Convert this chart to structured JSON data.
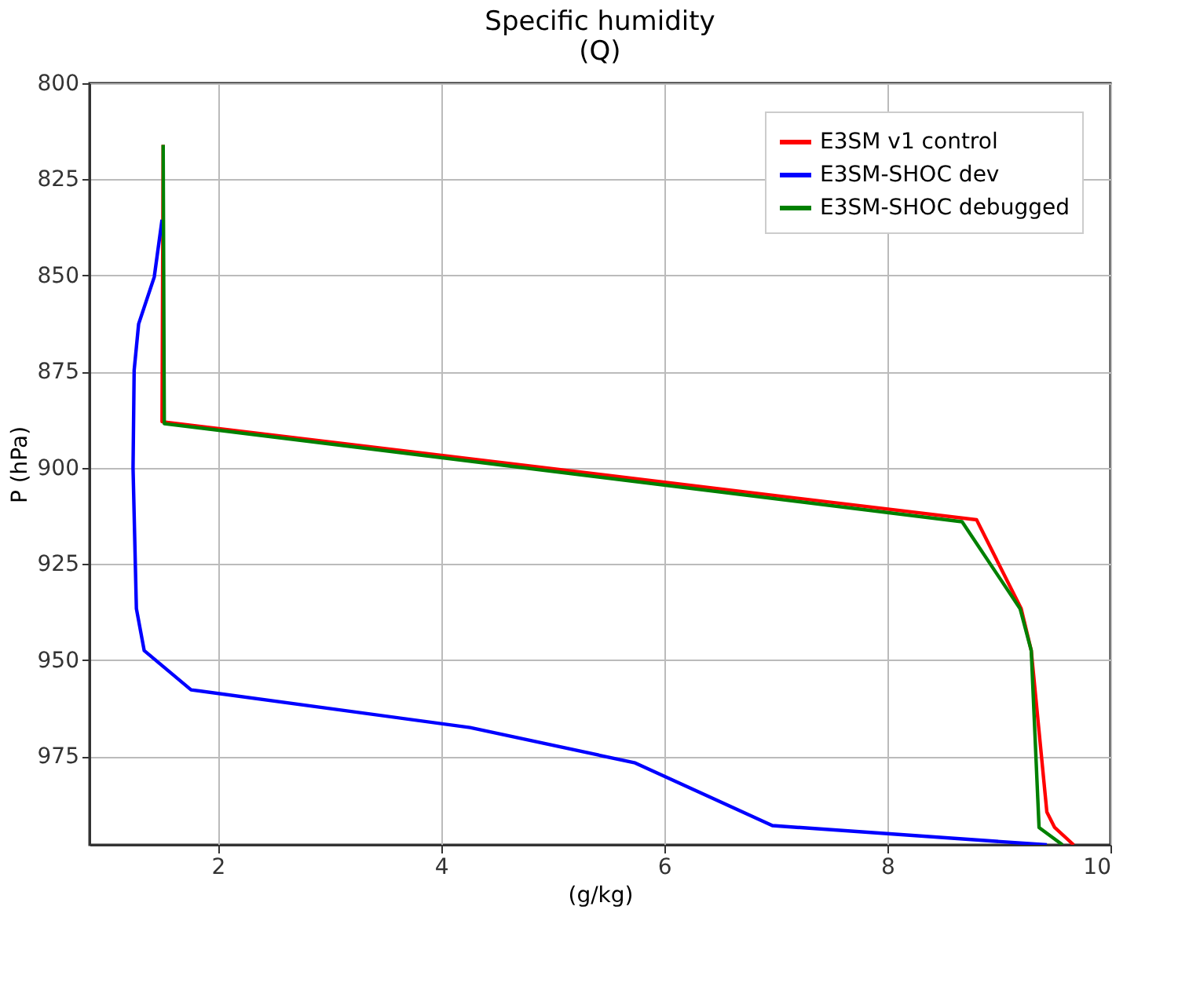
{
  "chart_data": {
    "type": "line",
    "title": [
      "Specific humidity",
      "(Q)"
    ],
    "xlabel": "(g/kg)",
    "ylabel": "P (hPa)",
    "xlim": [
      0.85,
      10
    ],
    "xticks": [
      2,
      4,
      6,
      8,
      10
    ],
    "ylim": [
      998,
      800
    ],
    "yticks": [
      800,
      825,
      850,
      875,
      900,
      925,
      950,
      975
    ],
    "grid": true,
    "legend": "top right",
    "line_style": "solid",
    "marker": "none",
    "series": [
      {
        "name": "E3SM v1 control",
        "color": "#ff0000",
        "x": [
          1.51,
          1.5,
          8.8,
          9.2,
          9.29,
          9.43,
          9.5,
          9.67
        ],
        "values": [
          816,
          888,
          913.5,
          936.6,
          947.5,
          989.5,
          993.5,
          998
        ]
      },
      {
        "name": "E3SM-SHOC dev",
        "color": "#0000ff",
        "x": [
          1.5,
          1.43,
          1.29,
          1.25,
          1.24,
          1.27,
          1.34,
          1.76,
          4.26,
          5.74,
          6.97,
          9.43
        ],
        "values": [
          835.5,
          850.4,
          862.6,
          874.6,
          900,
          936.6,
          947.5,
          957.7,
          967.5,
          976.7,
          993,
          998
        ]
      },
      {
        "name": "E3SM-SHOC debugged",
        "color": "#008000",
        "x": [
          1.51,
          1.52,
          8.67,
          9.19,
          9.29,
          9.36,
          9.57
        ],
        "values": [
          816,
          888.5,
          914,
          936.6,
          947.5,
          993.5,
          998
        ]
      }
    ]
  }
}
